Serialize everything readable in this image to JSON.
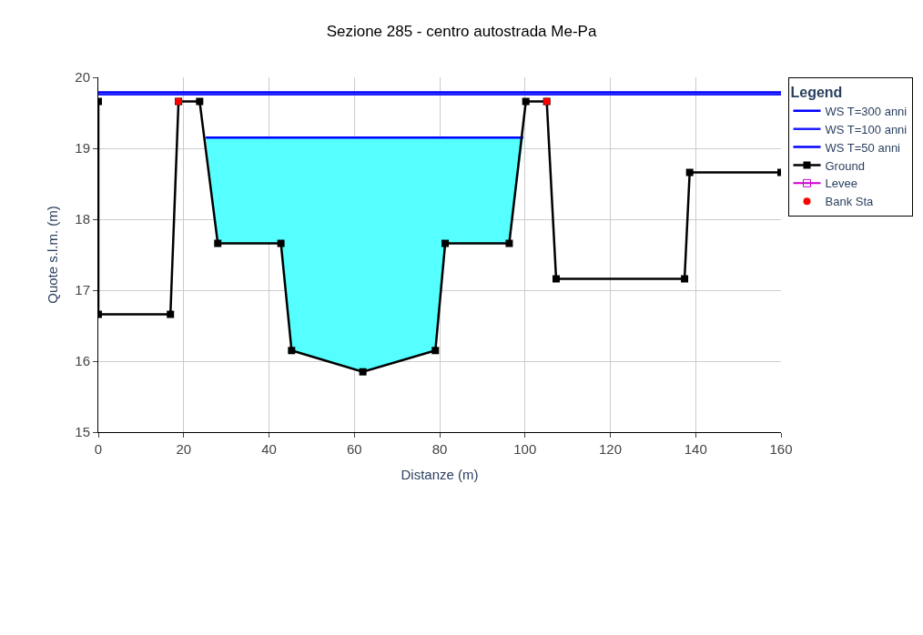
{
  "chart_data": {
    "type": "line",
    "title": "Sezione 285 - centro autostrada Me-Pa",
    "xlabel": "Distanze (m)",
    "ylabel": "Quote s.l.m. (m)",
    "legend_title": "Legend",
    "legend": "top right",
    "grid": true,
    "xlim": [
      0,
      160
    ],
    "xticks": [
      0,
      20,
      40,
      60,
      80,
      100,
      120,
      140,
      160
    ],
    "ylim": [
      15,
      20
    ],
    "yticks": [
      15,
      16,
      17,
      18,
      19,
      20
    ],
    "series": [
      {
        "name": "WS T=300 anni",
        "color": "#0000ff",
        "x": [
          0,
          160
        ],
        "values": [
          19.79,
          19.79
        ],
        "marker": "none"
      },
      {
        "name": "WS T=100 anni",
        "color": "#2020ff",
        "x": [
          0,
          160
        ],
        "values": [
          19.76,
          19.76
        ],
        "marker": "none"
      },
      {
        "name": "WS T=50 anni",
        "color": "#0000ff",
        "x": [
          25.2,
          28.0,
          42.8,
          45.3,
          62.0,
          79.0,
          81.3,
          96.3,
          99.6
        ],
        "values": [
          19.15,
          19.15,
          19.15,
          19.15,
          19.15,
          19.15,
          19.15,
          19.15,
          19.15
        ],
        "lower": [
          19.15,
          17.66,
          17.66,
          16.15,
          15.85,
          16.15,
          17.66,
          17.66,
          19.15
        ],
        "upper": [
          19.15,
          19.15,
          19.15,
          19.15,
          19.15,
          19.15,
          19.15,
          19.15,
          19.15
        ],
        "marker": "none"
      },
      {
        "name": "Ground",
        "color": "#000000",
        "x": [
          0,
          0,
          16.9,
          18.8,
          23.75,
          28.0,
          42.8,
          45.3,
          62.0,
          79.0,
          81.3,
          96.3,
          100.2,
          105.1,
          107.3,
          137.4,
          138.6,
          160
        ],
        "values": [
          19.66,
          16.66,
          16.66,
          19.66,
          19.66,
          17.66,
          17.66,
          16.15,
          15.85,
          16.15,
          17.66,
          17.66,
          19.66,
          19.66,
          17.16,
          17.16,
          18.66,
          18.66
        ],
        "marker": "square"
      },
      {
        "name": "Levee",
        "color": "#cc00cc",
        "marker": "square-open"
      },
      {
        "name": "Bank Sta",
        "type": "scatter",
        "color": "#ff0000",
        "x": [
          18.8,
          105.1
        ],
        "values": [
          19.66,
          19.66
        ],
        "marker": "circle"
      }
    ]
  }
}
